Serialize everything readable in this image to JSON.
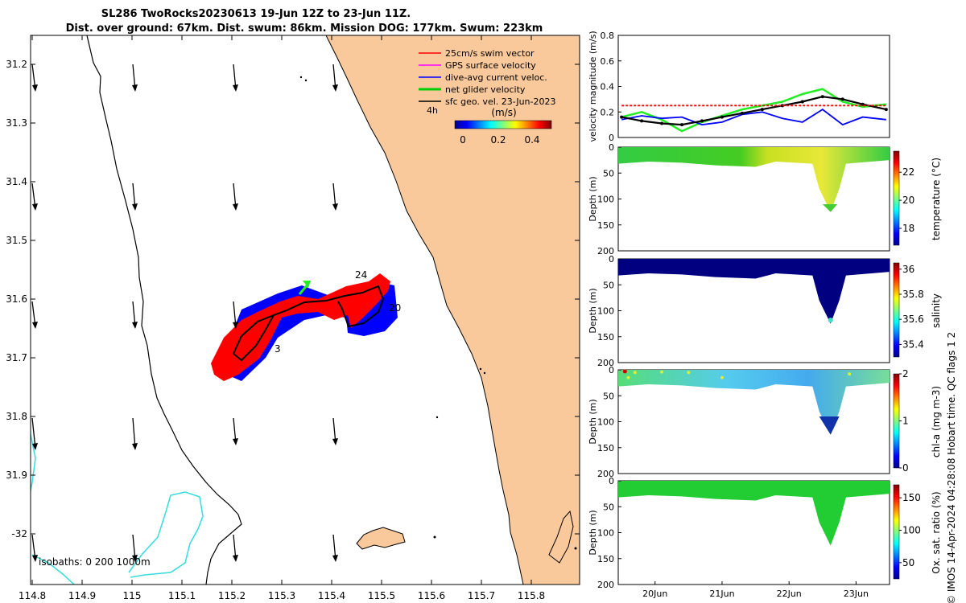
{
  "header": {
    "title_line1": "SL286 TwoRocks20230613 19-Jun 12Z to 23-Jun 11Z.",
    "title_line2": "Dist. over ground: 67km. Dist. swum: 86km. Mission DOG: 177km. Swum: 223km"
  },
  "footer": {
    "credit": "© IMOS 14-Apr-2024 04:28:08 Hobart time. QC flags 1  2"
  },
  "map": {
    "lat_ticks": [
      "31.2",
      "31.3",
      "31.4",
      "31.5",
      "31.6",
      "31.7",
      "31.8",
      "31.9",
      "-32"
    ],
    "lon_ticks": [
      "114.8",
      "114.9",
      "115",
      "115.1",
      "115.2",
      "115.3",
      "115.4",
      "115.5",
      "115.6",
      "115.7",
      "115.8"
    ],
    "legend": [
      {
        "label": "25cm/s swim vector",
        "color": "#ff0000"
      },
      {
        "label": "GPS surface velocity",
        "color": "#ff00ff"
      },
      {
        "label": "dive-avg current veloc.",
        "color": "#0000ff"
      },
      {
        "label": "net glider velocity",
        "color": "#00cc00"
      },
      {
        "label": "sfc geo. vel. 23-Jun-2023",
        "color": "#000000"
      }
    ],
    "colorbar_label": "(m/s)",
    "time_label": "4h",
    "colorbar_ticks": [
      "0",
      "0.2",
      "0.4"
    ],
    "isobaths_label": "isobaths: 0   200  1000m",
    "track_labels": [
      "24",
      "20",
      "3"
    ],
    "colors": {
      "land": "#f9c89b",
      "isobath_1000": "#33dddd",
      "track_blue": "#0000ff",
      "track_red": "#ff0000"
    }
  },
  "chart_data": [
    {
      "type": "line",
      "title": "",
      "ylabel": "velocity magnitude (m/s)",
      "ylim": [
        0,
        0.8
      ],
      "yticks": [
        "0",
        "0.2",
        "0.4",
        "0.6",
        "0.8"
      ],
      "x": [
        19.5,
        19.8,
        20.1,
        20.4,
        20.7,
        21.0,
        21.3,
        21.6,
        21.9,
        22.2,
        22.5,
        22.8,
        23.1,
        23.45
      ],
      "series": [
        {
          "name": "net glider velocity",
          "color": "#22ee22",
          "values": [
            0.16,
            0.2,
            0.14,
            0.05,
            0.12,
            0.17,
            0.22,
            0.25,
            0.28,
            0.34,
            0.38,
            0.28,
            0.24,
            0.26
          ]
        },
        {
          "name": "dive-avg current veloc.",
          "color": "#0000ff",
          "values": [
            0.14,
            0.17,
            0.15,
            0.16,
            0.1,
            0.12,
            0.18,
            0.2,
            0.15,
            0.12,
            0.22,
            0.1,
            0.16,
            0.14
          ]
        },
        {
          "name": "sfc geo. vel.",
          "color": "#000000",
          "values": [
            0.16,
            0.13,
            0.11,
            0.1,
            0.13,
            0.16,
            0.19,
            0.22,
            0.25,
            0.28,
            0.32,
            0.3,
            0.26,
            0.22
          ]
        },
        {
          "name": "25cm/s swim vector",
          "color": "#ff0000",
          "values": [
            0.25,
            0.25,
            0.25,
            0.25,
            0.25,
            0.25,
            0.25,
            0.25,
            0.25,
            0.25,
            0.25,
            0.25,
            0.25,
            0.25
          ]
        }
      ]
    },
    {
      "type": "heatmap",
      "ylabel": "Depth (m)",
      "cbar_label": "temperature (°C)",
      "ylim": [
        200,
        0
      ],
      "yticks": [
        "0",
        "50",
        "100",
        "150",
        "200"
      ],
      "cbar_range": [
        16.8,
        23.5
      ],
      "cbar_ticks": [
        "18",
        "20",
        "22"
      ],
      "max_depth": 125
    },
    {
      "type": "heatmap",
      "ylabel": "Depth (m)",
      "cbar_label": "salinity",
      "ylim": [
        200,
        0
      ],
      "yticks": [
        "0",
        "50",
        "100",
        "150",
        "200"
      ],
      "cbar_range": [
        35.3,
        36.05
      ],
      "cbar_ticks": [
        "35.4",
        "35.6",
        "35.8",
        "36"
      ],
      "max_depth": 125
    },
    {
      "type": "heatmap",
      "ylabel": "Depth (m)",
      "cbar_label": "chl-a (mg m-3)",
      "ylim": [
        200,
        0
      ],
      "yticks": [
        "0",
        "50",
        "100",
        "150",
        "200"
      ],
      "cbar_range": [
        0,
        2
      ],
      "cbar_ticks": [
        "0",
        "1",
        "2"
      ],
      "max_depth": 125
    },
    {
      "type": "heatmap",
      "ylabel": "Depth (m)",
      "cbar_label": "Ox. sat. ratio (%)",
      "ylim": [
        200,
        0
      ],
      "yticks": [
        "0",
        "50",
        "100",
        "150",
        "200"
      ],
      "cbar_range": [
        25,
        170
      ],
      "cbar_ticks": [
        "50",
        "100",
        "150"
      ],
      "max_depth": 125,
      "x_ticks": [
        "20Jun",
        "21Jun",
        "22Jun",
        "23Jun"
      ]
    }
  ]
}
